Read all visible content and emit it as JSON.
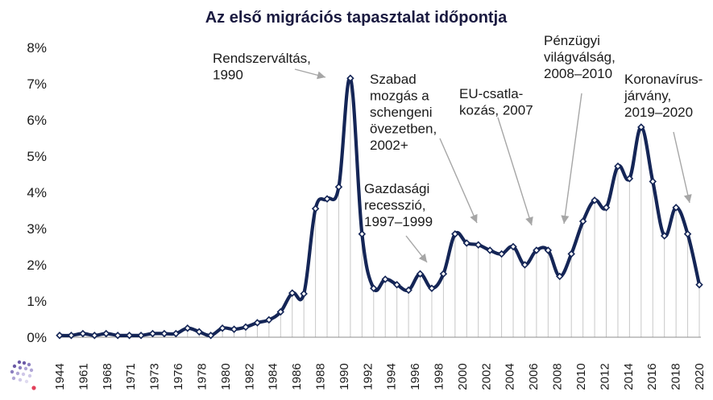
{
  "chart_data": {
    "type": "line",
    "title": "Az első migrációs tapasztalat időpontja",
    "xlabel": "",
    "ylabel": "",
    "ylim": [
      0,
      8
    ],
    "yticks": [
      "0%",
      "1%",
      "2%",
      "3%",
      "4%",
      "5%",
      "6%",
      "7%",
      "8%"
    ],
    "x_labels": [
      "1944",
      "1961",
      "1968",
      "1971",
      "1973",
      "1976",
      "1978",
      "1980",
      "1982",
      "1984",
      "1986",
      "1988",
      "1990",
      "1992",
      "1994",
      "1996",
      "1998",
      "2000",
      "2002",
      "2004",
      "2006",
      "2008",
      "2010",
      "2012",
      "2014",
      "2016",
      "2018",
      "2020"
    ],
    "grid": false,
    "legend": "none",
    "series": [
      {
        "values": [
          0.05,
          0.05,
          0.1,
          0.05,
          0.1,
          0.05,
          0.05,
          0.05,
          0.1,
          0.1,
          0.1,
          0.25,
          0.15,
          0.05,
          0.25,
          0.22,
          0.28,
          0.4,
          0.48,
          0.7,
          1.22,
          1.2,
          3.55,
          3.82,
          4.15,
          7.15,
          2.85,
          1.35,
          1.6,
          1.45,
          1.3,
          1.75,
          1.35,
          1.75,
          2.85,
          2.6,
          2.55,
          2.4,
          2.3,
          2.5,
          2.0,
          2.4,
          2.4,
          1.68,
          2.3,
          3.2,
          3.78,
          3.58,
          4.72,
          4.38,
          5.8,
          4.3,
          2.8,
          3.58,
          2.85,
          1.45
        ]
      }
    ],
    "annotations": [
      {
        "id": "rendszervaltas",
        "lines": [
          "Rendszerváltás,",
          "1990"
        ]
      },
      {
        "id": "szabad",
        "lines": [
          "Szabad",
          "mozgás a",
          "schengeni",
          "övezetben,",
          "2002+"
        ]
      },
      {
        "id": "gazdasagi",
        "lines": [
          "Gazdasági",
          "recesszió,",
          "1997–1999"
        ]
      },
      {
        "id": "eu",
        "lines": [
          "EU-csatla-",
          "kozás, 2007"
        ]
      },
      {
        "id": "penzugyi",
        "lines": [
          "Pénzügyi",
          "világválság,",
          "2008–2010"
        ]
      },
      {
        "id": "korona",
        "lines": [
          "Koronavírus-",
          "járvány,",
          "2019–2020"
        ]
      }
    ],
    "colors": {
      "line": "#142556",
      "marker_fill": "#ffffff",
      "arrow": "#a6a6a6",
      "drop_lines": "#c8c8c8",
      "title": "#1a1a40"
    }
  }
}
